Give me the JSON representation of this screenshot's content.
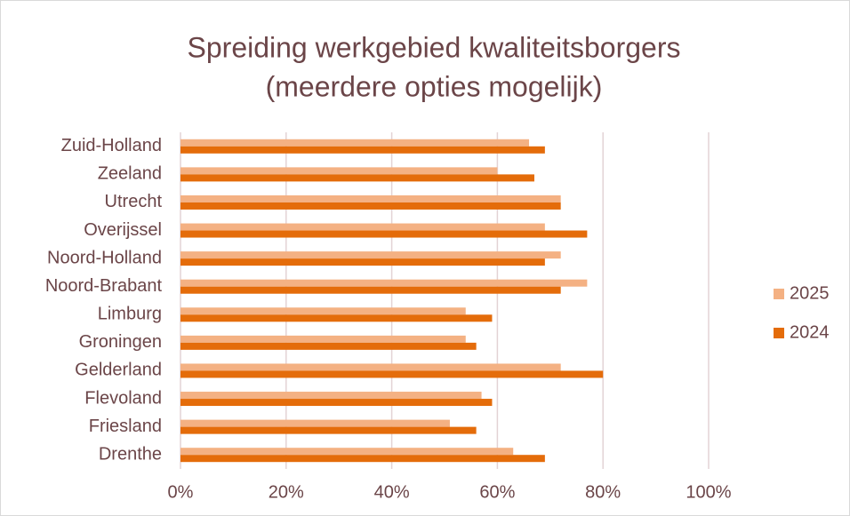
{
  "chart_data": {
    "type": "bar",
    "orientation": "horizontal",
    "title": [
      "Spreiding werkgebied kwaliteitsborgers",
      "(meerdere opties mogelijk)"
    ],
    "categories": [
      "Zuid-Holland",
      "Zeeland",
      "Utrecht",
      "Overijssel",
      "Noord-Holland",
      "Noord-Brabant",
      "Limburg",
      "Groningen",
      "Gelderland",
      "Flevoland",
      "Friesland",
      "Drenthe"
    ],
    "series": [
      {
        "name": "2025",
        "color": "#f4b183",
        "values": [
          66,
          60,
          72,
          69,
          72,
          77,
          54,
          54,
          72,
          57,
          51,
          63
        ]
      },
      {
        "name": "2024",
        "color": "#e46c0a",
        "values": [
          69,
          67,
          72,
          77,
          69,
          72,
          59,
          56,
          80,
          59,
          56,
          69
        ]
      }
    ],
    "xlim": [
      0,
      100
    ],
    "xticks": [
      {
        "value": 0,
        "label": "0%"
      },
      {
        "value": 20,
        "label": "20%"
      },
      {
        "value": 40,
        "label": "40%"
      },
      {
        "value": 60,
        "label": "60%"
      },
      {
        "value": 80,
        "label": "80%"
      },
      {
        "value": 100,
        "label": "100%"
      }
    ],
    "grid": true,
    "legend": "right"
  }
}
